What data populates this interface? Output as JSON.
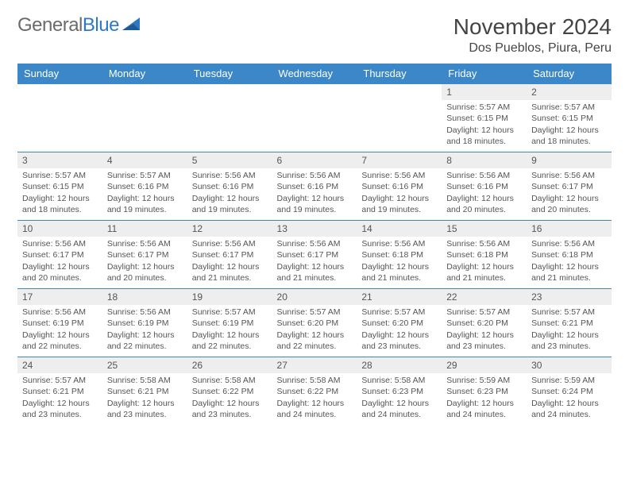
{
  "logo": {
    "text_gray": "General",
    "text_blue": "Blue"
  },
  "title": "November 2024",
  "location": "Dos Pueblos, Piura, Peru",
  "colors": {
    "header_bg": "#3b87c8",
    "header_text": "#ffffff",
    "daynum_bg": "#eeeeee",
    "border": "#3b87c8",
    "text": "#555555",
    "logo_gray": "#6b6b6b",
    "logo_blue": "#2f78c4"
  },
  "weekdays": [
    "Sunday",
    "Monday",
    "Tuesday",
    "Wednesday",
    "Thursday",
    "Friday",
    "Saturday"
  ],
  "weeks": [
    [
      {
        "day": "",
        "sunrise": "",
        "sunset": "",
        "daylight": ""
      },
      {
        "day": "",
        "sunrise": "",
        "sunset": "",
        "daylight": ""
      },
      {
        "day": "",
        "sunrise": "",
        "sunset": "",
        "daylight": ""
      },
      {
        "day": "",
        "sunrise": "",
        "sunset": "",
        "daylight": ""
      },
      {
        "day": "",
        "sunrise": "",
        "sunset": "",
        "daylight": ""
      },
      {
        "day": "1",
        "sunrise": "Sunrise: 5:57 AM",
        "sunset": "Sunset: 6:15 PM",
        "daylight": "Daylight: 12 hours and 18 minutes."
      },
      {
        "day": "2",
        "sunrise": "Sunrise: 5:57 AM",
        "sunset": "Sunset: 6:15 PM",
        "daylight": "Daylight: 12 hours and 18 minutes."
      }
    ],
    [
      {
        "day": "3",
        "sunrise": "Sunrise: 5:57 AM",
        "sunset": "Sunset: 6:15 PM",
        "daylight": "Daylight: 12 hours and 18 minutes."
      },
      {
        "day": "4",
        "sunrise": "Sunrise: 5:57 AM",
        "sunset": "Sunset: 6:16 PM",
        "daylight": "Daylight: 12 hours and 19 minutes."
      },
      {
        "day": "5",
        "sunrise": "Sunrise: 5:56 AM",
        "sunset": "Sunset: 6:16 PM",
        "daylight": "Daylight: 12 hours and 19 minutes."
      },
      {
        "day": "6",
        "sunrise": "Sunrise: 5:56 AM",
        "sunset": "Sunset: 6:16 PM",
        "daylight": "Daylight: 12 hours and 19 minutes."
      },
      {
        "day": "7",
        "sunrise": "Sunrise: 5:56 AM",
        "sunset": "Sunset: 6:16 PM",
        "daylight": "Daylight: 12 hours and 19 minutes."
      },
      {
        "day": "8",
        "sunrise": "Sunrise: 5:56 AM",
        "sunset": "Sunset: 6:16 PM",
        "daylight": "Daylight: 12 hours and 20 minutes."
      },
      {
        "day": "9",
        "sunrise": "Sunrise: 5:56 AM",
        "sunset": "Sunset: 6:17 PM",
        "daylight": "Daylight: 12 hours and 20 minutes."
      }
    ],
    [
      {
        "day": "10",
        "sunrise": "Sunrise: 5:56 AM",
        "sunset": "Sunset: 6:17 PM",
        "daylight": "Daylight: 12 hours and 20 minutes."
      },
      {
        "day": "11",
        "sunrise": "Sunrise: 5:56 AM",
        "sunset": "Sunset: 6:17 PM",
        "daylight": "Daylight: 12 hours and 20 minutes."
      },
      {
        "day": "12",
        "sunrise": "Sunrise: 5:56 AM",
        "sunset": "Sunset: 6:17 PM",
        "daylight": "Daylight: 12 hours and 21 minutes."
      },
      {
        "day": "13",
        "sunrise": "Sunrise: 5:56 AM",
        "sunset": "Sunset: 6:17 PM",
        "daylight": "Daylight: 12 hours and 21 minutes."
      },
      {
        "day": "14",
        "sunrise": "Sunrise: 5:56 AM",
        "sunset": "Sunset: 6:18 PM",
        "daylight": "Daylight: 12 hours and 21 minutes."
      },
      {
        "day": "15",
        "sunrise": "Sunrise: 5:56 AM",
        "sunset": "Sunset: 6:18 PM",
        "daylight": "Daylight: 12 hours and 21 minutes."
      },
      {
        "day": "16",
        "sunrise": "Sunrise: 5:56 AM",
        "sunset": "Sunset: 6:18 PM",
        "daylight": "Daylight: 12 hours and 21 minutes."
      }
    ],
    [
      {
        "day": "17",
        "sunrise": "Sunrise: 5:56 AM",
        "sunset": "Sunset: 6:19 PM",
        "daylight": "Daylight: 12 hours and 22 minutes."
      },
      {
        "day": "18",
        "sunrise": "Sunrise: 5:56 AM",
        "sunset": "Sunset: 6:19 PM",
        "daylight": "Daylight: 12 hours and 22 minutes."
      },
      {
        "day": "19",
        "sunrise": "Sunrise: 5:57 AM",
        "sunset": "Sunset: 6:19 PM",
        "daylight": "Daylight: 12 hours and 22 minutes."
      },
      {
        "day": "20",
        "sunrise": "Sunrise: 5:57 AM",
        "sunset": "Sunset: 6:20 PM",
        "daylight": "Daylight: 12 hours and 22 minutes."
      },
      {
        "day": "21",
        "sunrise": "Sunrise: 5:57 AM",
        "sunset": "Sunset: 6:20 PM",
        "daylight": "Daylight: 12 hours and 23 minutes."
      },
      {
        "day": "22",
        "sunrise": "Sunrise: 5:57 AM",
        "sunset": "Sunset: 6:20 PM",
        "daylight": "Daylight: 12 hours and 23 minutes."
      },
      {
        "day": "23",
        "sunrise": "Sunrise: 5:57 AM",
        "sunset": "Sunset: 6:21 PM",
        "daylight": "Daylight: 12 hours and 23 minutes."
      }
    ],
    [
      {
        "day": "24",
        "sunrise": "Sunrise: 5:57 AM",
        "sunset": "Sunset: 6:21 PM",
        "daylight": "Daylight: 12 hours and 23 minutes."
      },
      {
        "day": "25",
        "sunrise": "Sunrise: 5:58 AM",
        "sunset": "Sunset: 6:21 PM",
        "daylight": "Daylight: 12 hours and 23 minutes."
      },
      {
        "day": "26",
        "sunrise": "Sunrise: 5:58 AM",
        "sunset": "Sunset: 6:22 PM",
        "daylight": "Daylight: 12 hours and 23 minutes."
      },
      {
        "day": "27",
        "sunrise": "Sunrise: 5:58 AM",
        "sunset": "Sunset: 6:22 PM",
        "daylight": "Daylight: 12 hours and 24 minutes."
      },
      {
        "day": "28",
        "sunrise": "Sunrise: 5:58 AM",
        "sunset": "Sunset: 6:23 PM",
        "daylight": "Daylight: 12 hours and 24 minutes."
      },
      {
        "day": "29",
        "sunrise": "Sunrise: 5:59 AM",
        "sunset": "Sunset: 6:23 PM",
        "daylight": "Daylight: 12 hours and 24 minutes."
      },
      {
        "day": "30",
        "sunrise": "Sunrise: 5:59 AM",
        "sunset": "Sunset: 6:24 PM",
        "daylight": "Daylight: 12 hours and 24 minutes."
      }
    ]
  ]
}
